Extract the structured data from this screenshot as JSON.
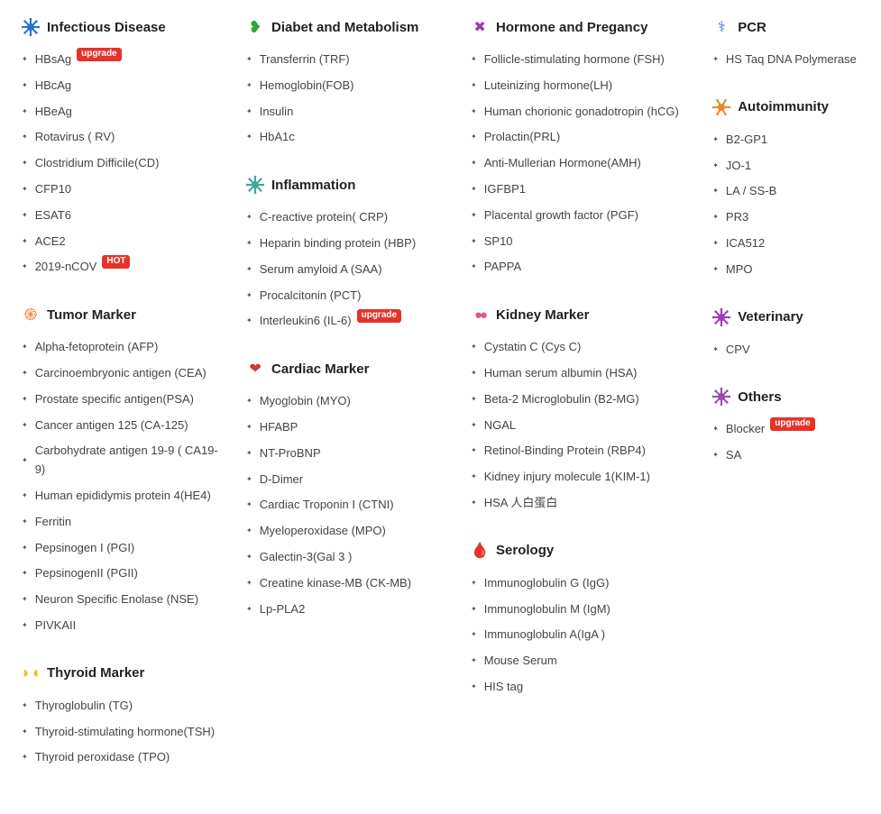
{
  "badges": {
    "upgrade": "upgrade",
    "hot": "HOT"
  },
  "icon_colors": {
    "infectious": "#2a6fd6",
    "tumor": "#e87b2a",
    "thyroid": "#f2c21a",
    "diabet": "#2aa83a",
    "inflammation": "#3aa89a",
    "cardiac": "#c93a3a",
    "hormone": "#a03ab0",
    "kidney": "#e05a7a",
    "serology": "#c42a2a",
    "pcr": "#2a6fd6",
    "autoimmunity": "#e88a2a",
    "veterinary": "#a03ab0",
    "others": "#9a4ab0"
  },
  "columns": [
    [
      {
        "id": "infectious",
        "title": "Infectious Disease",
        "icon": "virus-icon",
        "items": [
          {
            "label": "HBsAg",
            "badge": "upgrade"
          },
          {
            "label": "HBcAg"
          },
          {
            "label": "HBeAg"
          },
          {
            "label": "Rotavirus ( RV)"
          },
          {
            "label": "Clostridium Difficile(CD)"
          },
          {
            "label": "CFP10"
          },
          {
            "label": "ESAT6"
          },
          {
            "label": "ACE2"
          },
          {
            "label": "2019-nCOV",
            "badge": "hot"
          }
        ]
      },
      {
        "id": "tumor",
        "title": "Tumor Marker",
        "icon": "tumor-icon",
        "items": [
          {
            "label": "Alpha-fetoprotein (AFP)"
          },
          {
            "label": "Carcinoembryonic antigen (CEA)"
          },
          {
            "label": "Prostate specific antigen(PSA)"
          },
          {
            "label": "Cancer antigen 125 (CA-125)"
          },
          {
            "label": "Carbohydrate antigen 19-9 ( CA19-9)"
          },
          {
            "label": "Human epididymis protein 4(HE4)"
          },
          {
            "label": "Ferritin"
          },
          {
            "label": "Pepsinogen I (PGI)"
          },
          {
            "label": "PepsinogenII (PGII)"
          },
          {
            "label": "Neuron Specific Enolase (NSE)"
          },
          {
            "label": "PIVKAII"
          }
        ]
      },
      {
        "id": "thyroid",
        "title": "Thyroid Marker",
        "icon": "thyroid-icon",
        "items": [
          {
            "label": "Thyroglobulin (TG)"
          },
          {
            "label": "Thyroid-stimulating hormone(TSH)"
          },
          {
            "label": "Thyroid peroxidase (TPO)"
          }
        ]
      }
    ],
    [
      {
        "id": "diabet",
        "title": "Diabet and Metabolism",
        "icon": "stomach-icon",
        "items": [
          {
            "label": "Transferrin (TRF)"
          },
          {
            "label": "Hemoglobin(FOB)"
          },
          {
            "label": "Insulin"
          },
          {
            "label": "HbA1c"
          }
        ]
      },
      {
        "id": "inflammation",
        "title": "Inflammation",
        "icon": "inflammation-icon",
        "items": [
          {
            "label": "C-reactive protein( CRP)"
          },
          {
            "label": "Heparin binding protein (HBP)"
          },
          {
            "label": "Serum amyloid A (SAA)"
          },
          {
            "label": "Procalcitonin (PCT)"
          },
          {
            "label": "Interleukin6 (IL-6)",
            "badge": "upgrade"
          }
        ]
      },
      {
        "id": "cardiac",
        "title": "Cardiac Marker",
        "icon": "heart-icon",
        "items": [
          {
            "label": "Myoglobin (MYO)"
          },
          {
            "label": "HFABP"
          },
          {
            "label": "NT-ProBNP"
          },
          {
            "label": "D-Dimer"
          },
          {
            "label": "Cardiac Troponin I (CTNI)"
          },
          {
            "label": "Myeloperoxidase (MPO)"
          },
          {
            "label": "Galectin-3(Gal 3 )"
          },
          {
            "label": "Creatine kinase-MB (CK-MB)"
          },
          {
            "label": "Lp-PLA2"
          }
        ]
      }
    ],
    [
      {
        "id": "hormone",
        "title": "Hormone and Pregancy",
        "icon": "hormone-icon",
        "items": [
          {
            "label": "Follicle-stimulating hormone (FSH)"
          },
          {
            "label": "Luteinizing hormone(LH)"
          },
          {
            "label": "Human chorionic gonadotropin (hCG)"
          },
          {
            "label": "Prolactin(PRL)"
          },
          {
            "label": "Anti-Mullerian Hormone(AMH)"
          },
          {
            "label": "IGFBP1"
          },
          {
            "label": "Placental growth factor (PGF)"
          },
          {
            "label": "SP10"
          },
          {
            "label": "PAPPA"
          }
        ]
      },
      {
        "id": "kidney",
        "title": "Kidney Marker",
        "icon": "kidney-icon",
        "items": [
          {
            "label": "Cystatin C (Cys C)"
          },
          {
            "label": "Human serum albumin (HSA)"
          },
          {
            "label": "Beta-2 Microglobulin (B2-MG)"
          },
          {
            "label": "NGAL"
          },
          {
            "label": "Retinol-Binding Protein (RBP4)"
          },
          {
            "label": "Kidney injury molecule 1(KIM-1)"
          },
          {
            "label": "HSA 人白蛋白"
          }
        ]
      },
      {
        "id": "serology",
        "title": "Serology",
        "icon": "blood-icon",
        "items": [
          {
            "label": "Immunoglobulin G (IgG)"
          },
          {
            "label": "Immunoglobulin M (IgM)"
          },
          {
            "label": "Immunoglobulin A(IgA )"
          },
          {
            "label": "Mouse Serum"
          },
          {
            "label": "HIS tag"
          }
        ]
      }
    ],
    [
      {
        "id": "pcr",
        "title": "PCR",
        "icon": "dna-icon",
        "items": [
          {
            "label": "HS Taq DNA Polymerase"
          }
        ]
      },
      {
        "id": "autoimmunity",
        "title": "Autoimmunity",
        "icon": "autoimmunity-icon",
        "items": [
          {
            "label": "B2-GP1"
          },
          {
            "label": "JO-1"
          },
          {
            "label": "LA / SS-B"
          },
          {
            "label": "PR3"
          },
          {
            "label": "ICA512"
          },
          {
            "label": "MPO"
          }
        ]
      },
      {
        "id": "veterinary",
        "title": "Veterinary",
        "icon": "veterinary-icon",
        "items": [
          {
            "label": "CPV"
          }
        ]
      },
      {
        "id": "others",
        "title": "Others",
        "icon": "others-icon",
        "items": [
          {
            "label": "Blocker",
            "badge": "upgrade"
          },
          {
            "label": "SA"
          }
        ]
      }
    ]
  ]
}
